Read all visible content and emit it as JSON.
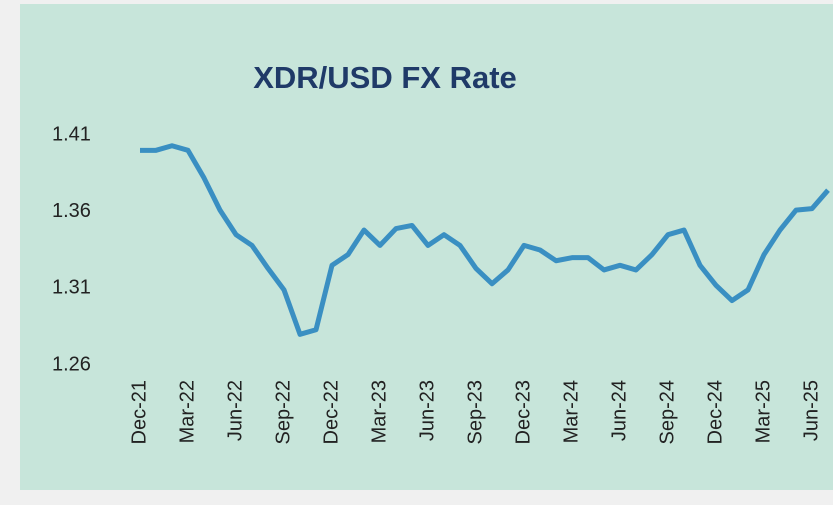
{
  "chart_data": {
    "type": "line",
    "title": "XDR/USD FX Rate",
    "categories": [
      "Dec-21",
      null,
      null,
      "Mar-22",
      null,
      null,
      "Jun-22",
      null,
      null,
      "Sep-22",
      null,
      null,
      "Dec-22",
      null,
      null,
      "Mar-23",
      null,
      null,
      "Jun-23",
      null,
      null,
      "Sep-23",
      null,
      null,
      "Dec-23",
      null,
      null,
      "Mar-24",
      null,
      null,
      "Jun-24",
      null,
      null,
      "Sep-24",
      null,
      null,
      "Dec-24",
      null,
      null,
      "Mar-25",
      null,
      null,
      "Jun-25",
      null
    ],
    "series": [
      {
        "name": "XDR/USD",
        "color": "#3a8fc2",
        "values": [
          1.4,
          1.4,
          1.403,
          1.4,
          1.382,
          1.361,
          1.345,
          1.338,
          1.323,
          1.309,
          1.28,
          1.283,
          1.325,
          1.332,
          1.348,
          1.338,
          1.349,
          1.351,
          1.338,
          1.345,
          1.338,
          1.323,
          1.313,
          1.322,
          1.338,
          1.335,
          1.328,
          1.33,
          1.33,
          1.322,
          1.325,
          1.322,
          1.332,
          1.345,
          1.348,
          1.325,
          1.312,
          1.302,
          1.309,
          1.332,
          1.348,
          1.361,
          1.362,
          1.374
        ]
      }
    ],
    "ylim": [
      1.26,
      1.41
    ],
    "yticks": [
      1.26,
      1.31,
      1.36,
      1.41
    ],
    "grid": false
  }
}
